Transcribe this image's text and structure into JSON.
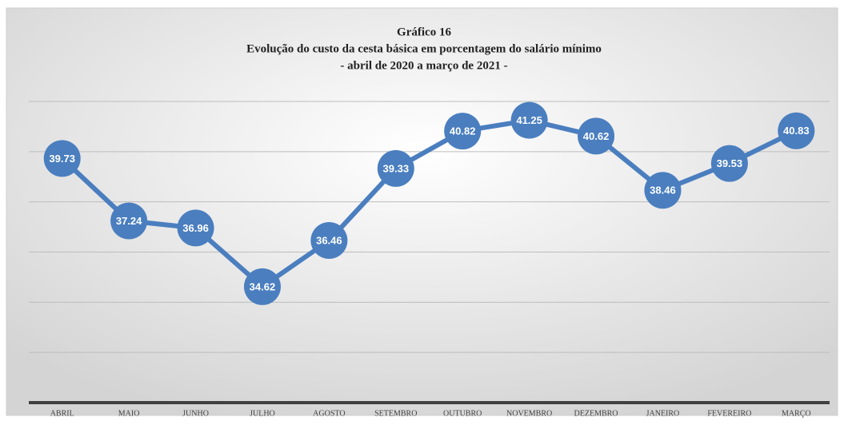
{
  "chart_data": {
    "type": "line",
    "title": "Gráfico 16",
    "subtitle": [
      "Evolução do custo da cesta básica em porcentagem do salário mínimo",
      "- abril de 2020 a março de 2021 -"
    ],
    "categories": [
      "ABRIL",
      "MAIO",
      "JUNHO",
      "JULHO",
      "AGOSTO",
      "SETEMBRO",
      "OUTUBRO",
      "NOVEMBRO",
      "DEZEMBRO",
      "JANEIRO",
      "FEVEREIRO",
      "MARÇO"
    ],
    "values": [
      39.73,
      37.24,
      36.96,
      34.62,
      36.46,
      39.33,
      40.82,
      41.25,
      40.62,
      38.46,
      39.53,
      40.83
    ],
    "color": "#4a7ebf",
    "ylim": [
      30,
      42
    ],
    "yticks": [
      30,
      32,
      34,
      36,
      38,
      40,
      42
    ],
    "grid": true
  }
}
